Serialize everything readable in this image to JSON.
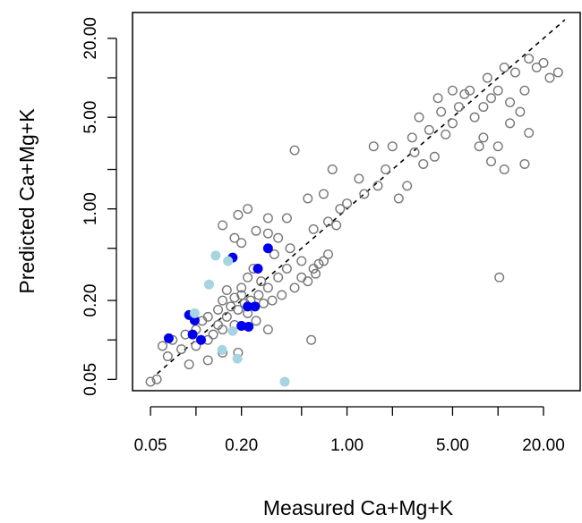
{
  "chart_data": {
    "type": "scatter",
    "log_x": true,
    "log_y": true,
    "x_label": "Measured Ca+Mg+K",
    "y_label": "Predicted Ca+Mg+K",
    "xlim": [
      0.038,
      35
    ],
    "ylim": [
      0.041,
      31.5
    ],
    "xticks": [
      0.05,
      {
        "value": 0.2,
        "label": "0.20"
      },
      {
        "value": 1,
        "label": "1.00"
      },
      {
        "value": 5,
        "label": "5.00"
      },
      {
        "value": 20,
        "label": "20.00"
      }
    ],
    "xminor_ticks": [
      0.1,
      0.5,
      2,
      10
    ],
    "yticks": [
      0.05,
      {
        "value": 0.2,
        "label": "0.20"
      },
      {
        "value": 1,
        "label": "1.00"
      },
      {
        "value": 5,
        "label": "5.00"
      },
      {
        "value": 20,
        "label": "20.00"
      }
    ],
    "yminor_ticks": [
      0.1,
      0.5,
      2,
      10
    ],
    "identity_line": true,
    "series": [
      {
        "color": "#777777",
        "filled": false,
        "x": [
          0.05,
          0.055,
          0.06,
          0.065,
          0.07,
          0.08,
          0.085,
          0.09,
          0.1,
          0.1,
          0.11,
          0.12,
          0.12,
          0.13,
          0.14,
          0.14,
          0.15,
          0.15,
          0.16,
          0.16,
          0.17,
          0.18,
          0.18,
          0.19,
          0.2,
          0.2,
          0.21,
          0.22,
          0.22,
          0.23,
          0.24,
          0.25,
          0.26,
          0.27,
          0.28,
          0.3,
          0.3,
          0.32,
          0.33,
          0.35,
          0.37,
          0.4,
          0.42,
          0.45,
          0.5,
          0.5,
          0.55,
          0.6,
          0.62,
          0.65,
          0.7,
          0.75,
          0.85,
          0.12,
          0.15,
          0.19,
          0.18,
          0.2,
          0.25,
          0.3,
          0.22,
          0.19,
          0.15,
          0.3,
          0.35,
          0.4,
          0.45,
          0.55,
          0.6,
          0.7,
          0.75,
          0.8,
          0.9,
          1.0,
          1.2,
          1.3,
          1.5,
          1.6,
          1.8,
          2.0,
          2.2,
          2.5,
          2.7,
          2.8,
          3.0,
          3.2,
          3.5,
          3.8,
          4.0,
          4.2,
          4.5,
          5.0,
          5.0,
          5.5,
          6,
          6.5,
          7,
          7.5,
          8,
          8.5,
          9,
          10,
          11,
          12,
          13,
          15,
          16,
          18,
          20,
          22,
          25,
          10,
          12,
          8,
          14,
          16,
          9,
          11,
          15,
          10.2,
          0.58
        ],
        "y": [
          0.048,
          0.05,
          0.09,
          0.075,
          0.1,
          0.085,
          0.11,
          0.065,
          0.12,
          0.09,
          0.14,
          0.15,
          0.1,
          0.11,
          0.13,
          0.17,
          0.2,
          0.12,
          0.24,
          0.15,
          0.18,
          0.21,
          0.13,
          0.17,
          0.22,
          0.25,
          0.19,
          0.3,
          0.16,
          0.2,
          0.35,
          0.14,
          0.22,
          0.28,
          0.19,
          0.25,
          0.12,
          0.2,
          0.45,
          0.3,
          0.22,
          0.35,
          0.5,
          0.25,
          0.3,
          0.4,
          0.28,
          0.35,
          0.32,
          0.38,
          0.4,
          0.45,
          0.75,
          0.07,
          0.08,
          0.08,
          0.6,
          0.55,
          0.68,
          0.65,
          1.0,
          0.9,
          0.75,
          0.85,
          0.6,
          0.85,
          2.8,
          1.2,
          0.7,
          1.3,
          0.8,
          2.0,
          1.0,
          1.1,
          1.7,
          1.3,
          3.0,
          1.5,
          2.0,
          3.0,
          1.2,
          1.5,
          3.5,
          2.7,
          5.0,
          2.2,
          4.0,
          2.5,
          7.0,
          5.5,
          3.7,
          4.5,
          8.0,
          6.0,
          7.5,
          8,
          5,
          3,
          6,
          10,
          7,
          8,
          12,
          6.5,
          11,
          8,
          14,
          12,
          13,
          10,
          11,
          3,
          4.5,
          3.5,
          5.5,
          3.8,
          2.3,
          2.0,
          2.2,
          0.3,
          0.1
        ]
      },
      {
        "color": "#0000ee",
        "filled": true,
        "x": [
          0.066,
          0.09,
          0.098,
          0.095,
          0.108,
          0.175,
          0.257,
          0.3,
          0.22,
          0.246,
          0.2,
          0.223
        ],
        "y": [
          0.103,
          0.155,
          0.141,
          0.11,
          0.1,
          0.425,
          0.35,
          0.5,
          0.18,
          0.18,
          0.128,
          0.126
        ]
      },
      {
        "color": "#a6d4e0",
        "filled": true,
        "x": [
          0.135,
          0.163,
          0.122,
          0.175,
          0.149,
          0.188,
          0.387,
          0.098
        ],
        "y": [
          0.44,
          0.4,
          0.265,
          0.117,
          0.084,
          0.072,
          0.048,
          0.16
        ]
      }
    ]
  }
}
